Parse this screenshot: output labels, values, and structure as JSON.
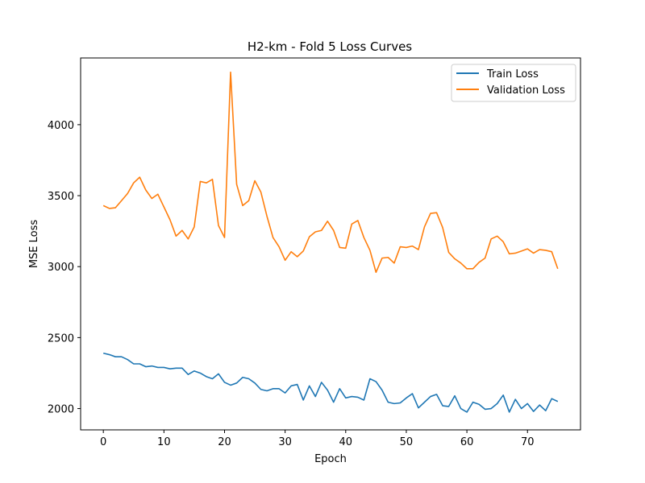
{
  "chart_data": {
    "type": "line",
    "title": "H2-km - Fold 5 Loss Curves",
    "xlabel": "Epoch",
    "ylabel": "MSE Loss",
    "xlim": [
      -3.75,
      78.75
    ],
    "ylim": [
      1850,
      4470
    ],
    "xticks": [
      0,
      10,
      20,
      30,
      40,
      50,
      60,
      70
    ],
    "yticks": [
      2000,
      2500,
      3000,
      3500,
      4000
    ],
    "grid": false,
    "legend_position": "top-right",
    "series": [
      {
        "name": "Train Loss",
        "color": "#1f77b4",
        "x": [
          0,
          1,
          2,
          3,
          4,
          5,
          6,
          7,
          8,
          9,
          10,
          11,
          12,
          13,
          14,
          15,
          16,
          17,
          18,
          19,
          20,
          21,
          22,
          23,
          24,
          25,
          26,
          27,
          28,
          29,
          30,
          31,
          32,
          33,
          34,
          35,
          36,
          37,
          38,
          39,
          40,
          41,
          42,
          43,
          44,
          45,
          46,
          47,
          48,
          49,
          50,
          51,
          52,
          53,
          54,
          55,
          56,
          57,
          58,
          59,
          60,
          61,
          62,
          63,
          64,
          65,
          66,
          67,
          68,
          69,
          70,
          71,
          72,
          73,
          74,
          75
        ],
        "values": [
          2390,
          2380,
          2365,
          2365,
          2345,
          2315,
          2315,
          2295,
          2300,
          2290,
          2290,
          2280,
          2285,
          2285,
          2240,
          2265,
          2250,
          2225,
          2210,
          2245,
          2185,
          2165,
          2180,
          2220,
          2210,
          2180,
          2135,
          2125,
          2140,
          2140,
          2110,
          2160,
          2170,
          2060,
          2160,
          2085,
          2185,
          2130,
          2045,
          2140,
          2075,
          2085,
          2080,
          2060,
          2210,
          2190,
          2130,
          2045,
          2035,
          2040,
          2075,
          2105,
          2005,
          2045,
          2085,
          2100,
          2020,
          2015,
          2090,
          2000,
          1975,
          2045,
          2030,
          1995,
          2000,
          2035,
          2095,
          1975,
          2065,
          2000,
          2035,
          1980,
          2025,
          1985,
          2070,
          2050
        ]
      },
      {
        "name": "Validation Loss",
        "color": "#ff7f0e",
        "x": [
          0,
          1,
          2,
          3,
          4,
          5,
          6,
          7,
          8,
          9,
          10,
          11,
          12,
          13,
          14,
          15,
          16,
          17,
          18,
          19,
          20,
          21,
          22,
          23,
          24,
          25,
          26,
          27,
          28,
          29,
          30,
          31,
          32,
          33,
          34,
          35,
          36,
          37,
          38,
          39,
          40,
          41,
          42,
          43,
          44,
          45,
          46,
          47,
          48,
          49,
          50,
          51,
          52,
          53,
          54,
          55,
          56,
          57,
          58,
          59,
          60,
          61,
          62,
          63,
          64,
          65,
          66,
          67,
          68,
          69,
          70,
          71,
          72,
          73,
          74,
          75
        ],
        "values": [
          3430,
          3410,
          3415,
          3465,
          3515,
          3590,
          3630,
          3540,
          3480,
          3510,
          3420,
          3330,
          3215,
          3255,
          3195,
          3280,
          3600,
          3590,
          3615,
          3290,
          3205,
          4370,
          3580,
          3430,
          3465,
          3605,
          3525,
          3355,
          3205,
          3140,
          3045,
          3105,
          3070,
          3110,
          3210,
          3245,
          3255,
          3320,
          3255,
          3135,
          3130,
          3300,
          3325,
          3205,
          3115,
          2960,
          3060,
          3065,
          3025,
          3140,
          3135,
          3145,
          3120,
          3280,
          3375,
          3380,
          3275,
          3100,
          3055,
          3025,
          2985,
          2985,
          3030,
          3060,
          3195,
          3215,
          3175,
          3090,
          3095,
          3110,
          3125,
          3095,
          3120,
          3115,
          3105,
          2985
        ]
      }
    ]
  }
}
